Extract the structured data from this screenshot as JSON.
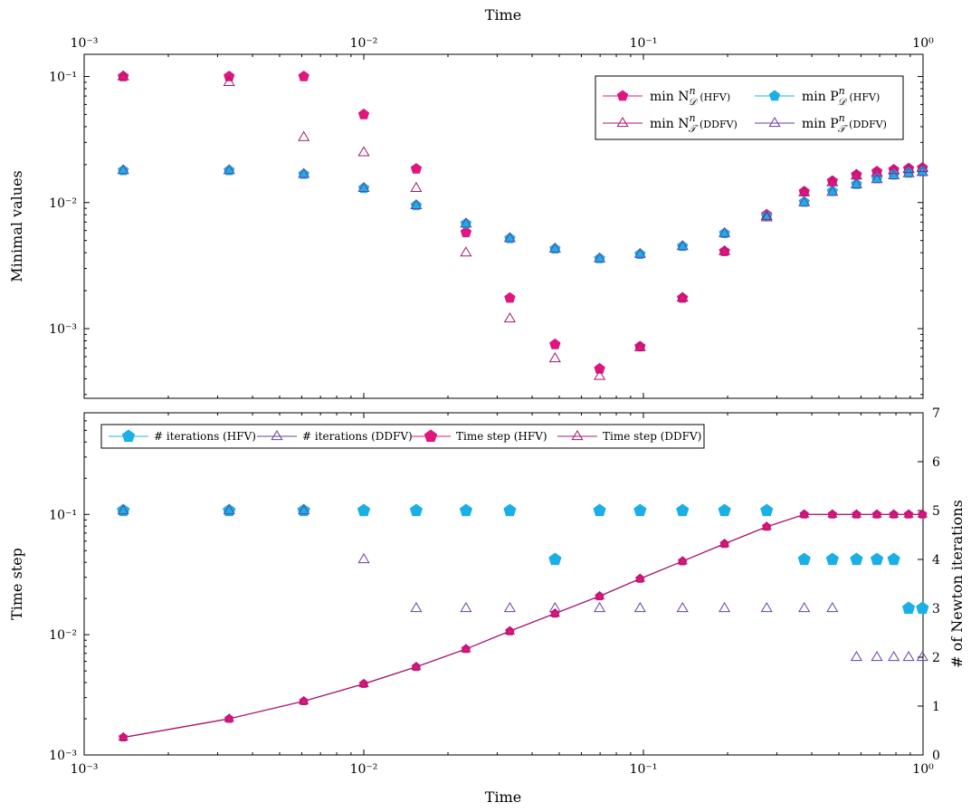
{
  "chart_data": [
    {
      "type": "scatter",
      "xlabel": "Time",
      "ylabel": "Minimal values",
      "xscale": "log",
      "yscale": "log",
      "xlim": [
        0.001,
        1
      ],
      "ylim": [
        0.00028,
        0.15
      ],
      "x_tick_labels": [
        "10⁻³",
        "10⁻²",
        "10⁻¹",
        "10⁰"
      ],
      "y_tick_labels": [
        "10⁻³",
        "10⁻²",
        "10⁻¹"
      ],
      "legend_position": "top-right",
      "x": [
        0.00138,
        0.0033,
        0.0061,
        0.01,
        0.0154,
        0.0232,
        0.0333,
        0.0483,
        0.0697,
        0.0973,
        0.138,
        0.195,
        0.276,
        0.376,
        0.474,
        0.578,
        0.684,
        0.786,
        0.888,
        0.995
      ],
      "series": [
        {
          "name": "min N_D^n (HFV)",
          "legend_math": "min N",
          "legend_sub": "𝒟",
          "legend_sup": "n",
          "legend_tag": "(HFV)",
          "marker": "pentagon",
          "color": "#e0157e",
          "values": [
            0.1,
            0.1,
            0.1,
            0.05,
            0.0185,
            0.0058,
            0.00175,
            0.00075,
            0.00048,
            0.00072,
            0.00175,
            0.0041,
            0.008,
            0.0122,
            0.0148,
            0.0166,
            0.0176,
            0.0182,
            0.0186,
            0.0188
          ]
        },
        {
          "name": "min P_D^n (HFV)",
          "legend_math": "min P",
          "legend_sub": "𝒟",
          "legend_sup": "n",
          "legend_tag": "(HFV)",
          "marker": "pentagon",
          "color": "#1ab0e6",
          "values": [
            0.018,
            0.018,
            0.0168,
            0.013,
            0.0095,
            0.0068,
            0.0052,
            0.0043,
            0.0036,
            0.0039,
            0.0045,
            0.0057,
            0.0078,
            0.0101,
            0.0123,
            0.014,
            0.0155,
            0.0166,
            0.0172,
            0.0176
          ]
        },
        {
          "name": "min N_T^n (DDFV)",
          "legend_math": "min N",
          "legend_sub": "𝒯",
          "legend_sup": "n",
          "legend_tag": "(DDFV)",
          "marker": "triangle",
          "color": "#a31870",
          "values": [
            0.1,
            0.09,
            0.033,
            0.025,
            0.013,
            0.004,
            0.0012,
            0.00058,
            0.00042,
            0.00071,
            0.00175,
            0.0041,
            0.0078,
            0.012,
            0.0144,
            0.0163,
            0.0173,
            0.018,
            0.0184,
            0.0187
          ]
        },
        {
          "name": "min P_T^n (DDFV)",
          "legend_math": "min P",
          "legend_sub": "𝒯",
          "legend_sup": "n",
          "legend_tag": "(DDFV)",
          "marker": "triangle",
          "color": "#6a3fa0",
          "values": [
            0.018,
            0.018,
            0.0168,
            0.013,
            0.0095,
            0.0068,
            0.0052,
            0.0043,
            0.0036,
            0.0039,
            0.0045,
            0.0057,
            0.0076,
            0.01,
            0.0121,
            0.0139,
            0.0153,
            0.0164,
            0.017,
            0.0174
          ]
        }
      ]
    },
    {
      "type": "line",
      "xlabel": "Time",
      "ylabel": "Time step",
      "y2label": "# of Newton iterations",
      "xscale": "log",
      "yscale": "log",
      "xlim": [
        0.001,
        1
      ],
      "ylim": [
        0.001,
        0.7
      ],
      "y2lim": [
        0,
        7
      ],
      "x_tick_labels": [
        "10⁻³",
        "10⁻²",
        "10⁻¹",
        "10⁰"
      ],
      "y_tick_labels": [
        "10⁻³",
        "10⁻²",
        "10⁻¹"
      ],
      "y2_tick_labels": [
        "0",
        "1",
        "2",
        "3",
        "4",
        "5",
        "6",
        "7"
      ],
      "legend_position": "top-left",
      "x": [
        0.00138,
        0.0033,
        0.0061,
        0.01,
        0.0154,
        0.0232,
        0.0333,
        0.0483,
        0.0697,
        0.0973,
        0.138,
        0.195,
        0.276,
        0.376,
        0.474,
        0.578,
        0.684,
        0.786,
        0.888,
        0.995
      ],
      "series": [
        {
          "name": "# iterations (HFV)",
          "axis": "right",
          "marker": "pentagon",
          "line": false,
          "color": "#1ab0e6",
          "values": [
            5,
            5,
            5,
            5,
            5,
            5,
            5,
            4,
            5,
            5,
            5,
            5,
            5,
            4,
            4,
            4,
            4,
            4,
            3,
            3
          ]
        },
        {
          "name": "# iterations (DDFV)",
          "axis": "right",
          "marker": "triangle",
          "line": false,
          "color": "#6a3fa0",
          "values": [
            5,
            5,
            5,
            4,
            3,
            3,
            3,
            3,
            3,
            3,
            3,
            3,
            3,
            3,
            3,
            2,
            2,
            2,
            2,
            2
          ]
        },
        {
          "name": "Time step (HFV)",
          "axis": "left",
          "marker": "pentagon",
          "line": true,
          "color": "#e0157e",
          "values": [
            0.0014,
            0.002,
            0.0028,
            0.0039,
            0.0054,
            0.0076,
            0.0107,
            0.015,
            0.0209,
            0.0292,
            0.0408,
            0.057,
            0.079,
            0.1,
            0.1,
            0.1,
            0.1,
            0.1,
            0.1,
            0.1
          ]
        },
        {
          "name": "Time step (DDFV)",
          "axis": "left",
          "marker": "triangle",
          "line": true,
          "color": "#a31870",
          "values": [
            0.0014,
            0.002,
            0.0028,
            0.0039,
            0.0054,
            0.0076,
            0.0107,
            0.015,
            0.0209,
            0.0292,
            0.0408,
            0.057,
            0.079,
            0.1,
            0.1,
            0.1,
            0.1,
            0.1,
            0.1,
            0.1
          ]
        }
      ]
    }
  ]
}
